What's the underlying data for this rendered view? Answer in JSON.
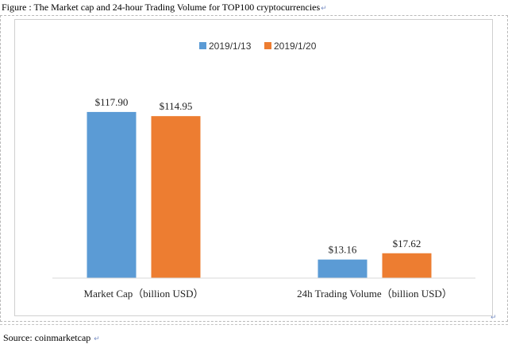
{
  "figure_caption": "Figure : The Market cap and 24-hour Trading Volume for TOP100 cryptocurrencies",
  "source_text": "Source: coinmarketcap",
  "chart_data": {
    "type": "bar",
    "title": "",
    "categories": [
      "Market Cap（billion USD）",
      "24h Trading Volume（billion USD）"
    ],
    "series": [
      {
        "name": "2019/1/13",
        "values": [
          117.9,
          13.16
        ],
        "labels": [
          "$117.90",
          "$13.16"
        ],
        "color": "#5b9bd5"
      },
      {
        "name": "2019/1/20",
        "values": [
          114.95,
          17.62
        ],
        "labels": [
          "$114.95",
          "$17.62"
        ],
        "color": "#ed7d31"
      }
    ],
    "ylim": [
      0,
      150
    ],
    "grid": false,
    "legend_position": "top-center",
    "xlabel": "",
    "ylabel": ""
  }
}
